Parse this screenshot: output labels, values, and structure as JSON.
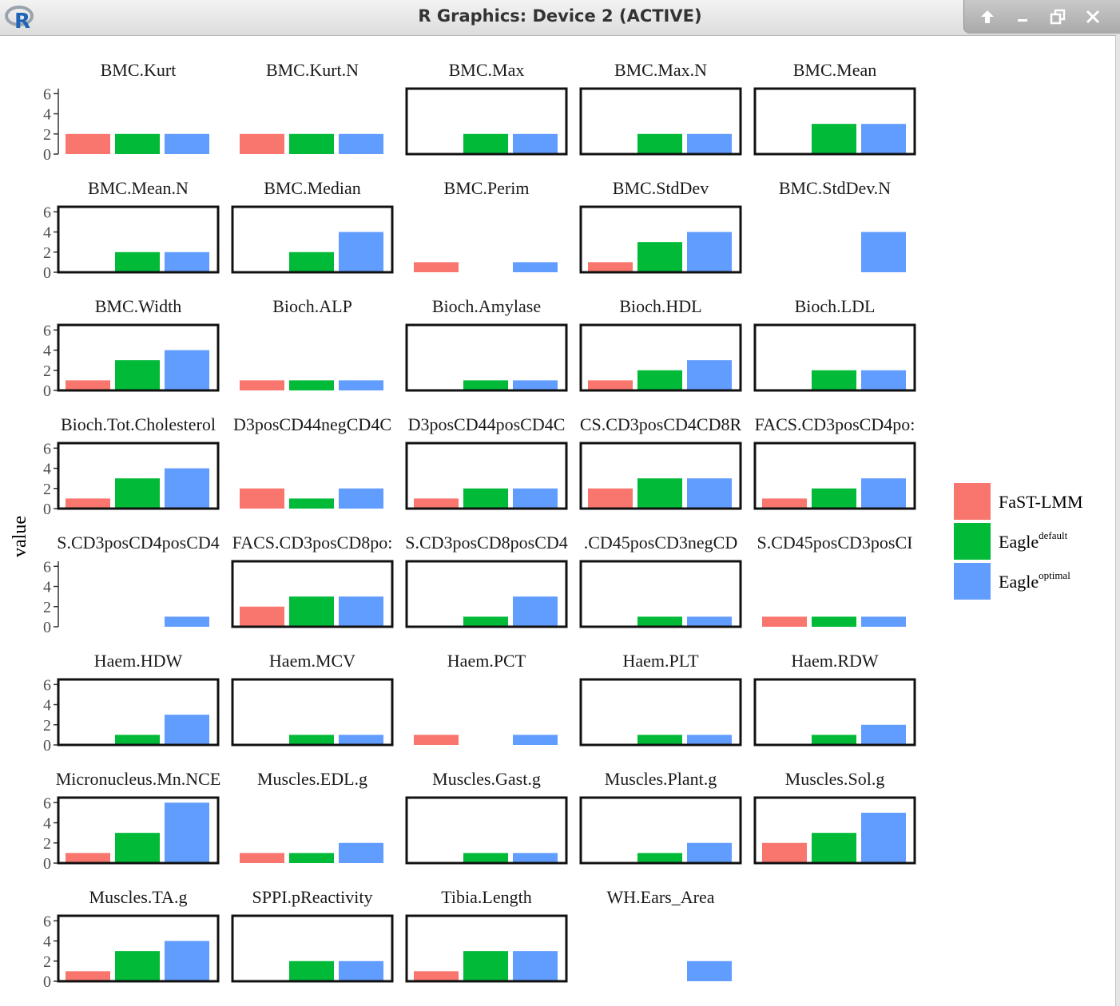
{
  "window": {
    "title": "R Graphics: Device 2 (ACTIVE)",
    "icons": [
      "r-logo-icon",
      "up-arrow-icon",
      "minimize-icon",
      "restore-icon",
      "close-icon"
    ]
  },
  "chart_data": {
    "type": "bar",
    "layout": "facet grid, 5 columns x 8 rows",
    "ylabel": "value",
    "xlabel": "",
    "ylim": [
      0,
      6.5
    ],
    "yticks": [
      0,
      2,
      4,
      6
    ],
    "legend_position": "right",
    "series": [
      {
        "name": "FaST-LMM",
        "label": "FaST-LMM",
        "color": "#F8766D"
      },
      {
        "name": "Eagle default",
        "label": "Eagle",
        "sup": "default",
        "color": "#00BA38"
      },
      {
        "name": "Eagle optimal",
        "label": "Eagle",
        "sup": "optimal",
        "color": "#619CFF"
      }
    ],
    "facets": [
      {
        "title": "BMC.Kurt",
        "values": [
          2,
          2,
          2
        ],
        "highlight": false
      },
      {
        "title": "BMC.Kurt.N",
        "values": [
          2,
          2,
          2
        ],
        "highlight": false
      },
      {
        "title": "BMC.Max",
        "values": [
          0,
          2,
          2
        ],
        "highlight": true
      },
      {
        "title": "BMC.Max.N",
        "values": [
          0,
          2,
          2
        ],
        "highlight": true
      },
      {
        "title": "BMC.Mean",
        "values": [
          0,
          3,
          3
        ],
        "highlight": true
      },
      {
        "title": "BMC.Mean.N",
        "values": [
          0,
          2,
          2
        ],
        "highlight": true
      },
      {
        "title": "BMC.Median",
        "values": [
          0,
          2,
          4
        ],
        "highlight": true
      },
      {
        "title": "BMC.Perim",
        "values": [
          1,
          0,
          1
        ],
        "highlight": false
      },
      {
        "title": "BMC.StdDev",
        "values": [
          1,
          3,
          4
        ],
        "highlight": true
      },
      {
        "title": "BMC.StdDev.N",
        "values": [
          0,
          0,
          4
        ],
        "highlight": false
      },
      {
        "title": "BMC.Width",
        "values": [
          1,
          3,
          4
        ],
        "highlight": true
      },
      {
        "title": "Bioch.ALP",
        "values": [
          1,
          1,
          1
        ],
        "highlight": false
      },
      {
        "title": "Bioch.Amylase",
        "values": [
          0,
          1,
          1
        ],
        "highlight": true
      },
      {
        "title": "Bioch.HDL",
        "values": [
          1,
          2,
          3
        ],
        "highlight": true
      },
      {
        "title": "Bioch.LDL",
        "values": [
          0,
          2,
          2
        ],
        "highlight": true
      },
      {
        "title": "Bioch.Tot.Cholesterol",
        "values": [
          1,
          3,
          4
        ],
        "highlight": true
      },
      {
        "title": "D3posCD44negCD4C",
        "values": [
          2,
          1,
          2
        ],
        "highlight": false
      },
      {
        "title": "D3posCD44posCD4C",
        "values": [
          1,
          2,
          2
        ],
        "highlight": true
      },
      {
        "title": "CS.CD3posCD4CD8R",
        "values": [
          2,
          3,
          3
        ],
        "highlight": true
      },
      {
        "title": "FACS.CD3posCD4po:",
        "values": [
          1,
          2,
          3
        ],
        "highlight": true
      },
      {
        "title": "S.CD3posCD4posCD4",
        "values": [
          0,
          0,
          1
        ],
        "highlight": false
      },
      {
        "title": "FACS.CD3posCD8po:",
        "values": [
          2,
          3,
          3
        ],
        "highlight": true
      },
      {
        "title": "S.CD3posCD8posCD4",
        "values": [
          0,
          1,
          3
        ],
        "highlight": true
      },
      {
        "title": ".CD45posCD3negCD",
        "values": [
          0,
          1,
          1
        ],
        "highlight": true
      },
      {
        "title": "S.CD45posCD3posCI",
        "values": [
          1,
          1,
          1
        ],
        "highlight": false
      },
      {
        "title": "Haem.HDW",
        "values": [
          0,
          1,
          3
        ],
        "highlight": true
      },
      {
        "title": "Haem.MCV",
        "values": [
          0,
          1,
          1
        ],
        "highlight": true
      },
      {
        "title": "Haem.PCT",
        "values": [
          1,
          0,
          1
        ],
        "highlight": false
      },
      {
        "title": "Haem.PLT",
        "values": [
          0,
          1,
          1
        ],
        "highlight": true
      },
      {
        "title": "Haem.RDW",
        "values": [
          0,
          1,
          2
        ],
        "highlight": true
      },
      {
        "title": "Micronucleus.Mn.NCE",
        "values": [
          1,
          3,
          6
        ],
        "highlight": true
      },
      {
        "title": "Muscles.EDL.g",
        "values": [
          1,
          1,
          2
        ],
        "highlight": false
      },
      {
        "title": "Muscles.Gast.g",
        "values": [
          0,
          1,
          1
        ],
        "highlight": true
      },
      {
        "title": "Muscles.Plant.g",
        "values": [
          0,
          1,
          2
        ],
        "highlight": true
      },
      {
        "title": "Muscles.Sol.g",
        "values": [
          2,
          3,
          5
        ],
        "highlight": true
      },
      {
        "title": "Muscles.TA.g",
        "values": [
          1,
          3,
          4
        ],
        "highlight": true
      },
      {
        "title": "SPPI.pReactivity",
        "values": [
          0,
          2,
          2
        ],
        "highlight": true
      },
      {
        "title": "Tibia.Length",
        "values": [
          1,
          3,
          3
        ],
        "highlight": true
      },
      {
        "title": "WH.Ears_Area",
        "values": [
          0,
          0,
          2
        ],
        "highlight": false
      }
    ]
  }
}
